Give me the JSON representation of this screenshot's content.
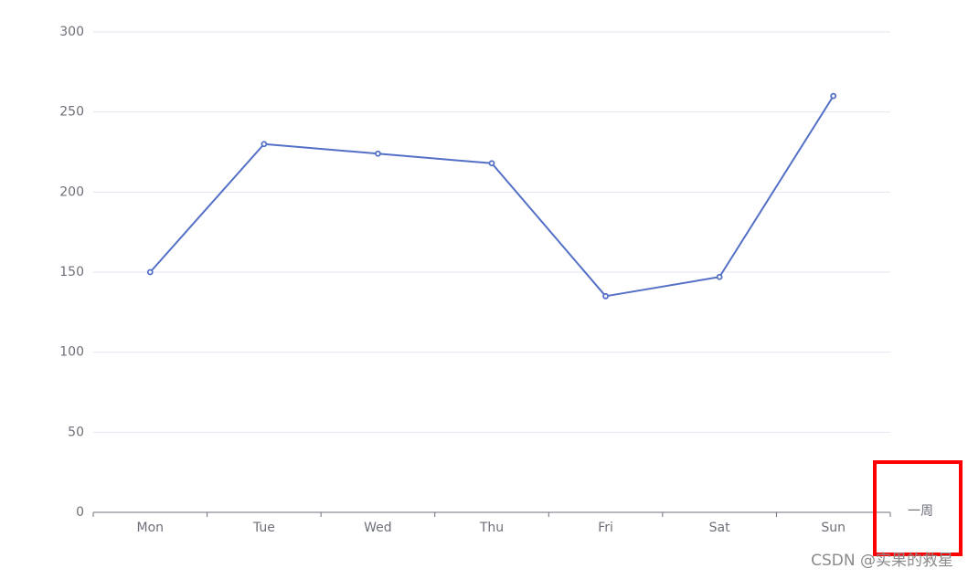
{
  "chart_data": {
    "type": "line",
    "categories": [
      "Mon",
      "Tue",
      "Wed",
      "Thu",
      "Fri",
      "Sat",
      "Sun"
    ],
    "values": [
      150,
      230,
      224,
      218,
      135,
      147,
      260
    ],
    "color": "#5470c6",
    "x_axis_label": "一周",
    "ylim": [
      0,
      300
    ],
    "yticks": [
      0,
      50,
      100,
      150,
      200,
      250,
      300
    ],
    "grid": true
  },
  "watermark": "CSDN @实果的救星"
}
